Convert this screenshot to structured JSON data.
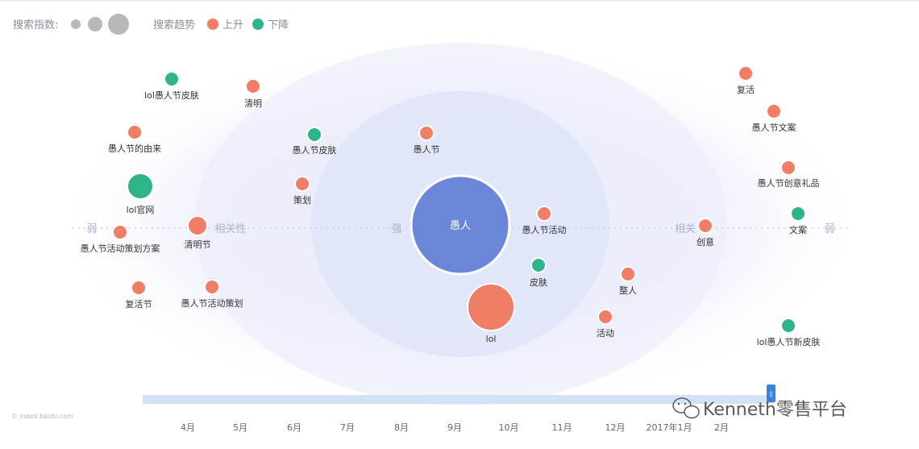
{
  "legend": {
    "size_label": "搜索指数:",
    "trend_label": "搜索趋势",
    "up_label": "上升",
    "down_label": "下降"
  },
  "colors": {
    "up": "#f07d65",
    "down": "#2fb38a",
    "center": "#6b86d8",
    "size_legend": "#b8b8b8",
    "timeline": "#cfe0f8"
  },
  "axis_words": {
    "weak": "弱",
    "related": "相关性",
    "strong": "强",
    "related_short": "相关"
  },
  "chart_data": {
    "type": "bubble",
    "center": {
      "label": "愚人"
    },
    "points": [
      {
        "label": "lol愚人节皮肤",
        "trend": "down",
        "size": 1
      },
      {
        "label": "清明",
        "trend": "up",
        "size": 1
      },
      {
        "label": "愚人节的由来",
        "trend": "up",
        "size": 1
      },
      {
        "label": "愚人节皮肤",
        "trend": "down",
        "size": 1
      },
      {
        "label": "愚人节",
        "trend": "up",
        "size": 1
      },
      {
        "label": "lol官网",
        "trend": "down",
        "size": 2
      },
      {
        "label": "策划",
        "trend": "up",
        "size": 1
      },
      {
        "label": "清明节",
        "trend": "up",
        "size": 1.5
      },
      {
        "label": "愚人节活动策划方案",
        "trend": "up",
        "size": 1
      },
      {
        "label": "愚人节活动",
        "trend": "up",
        "size": 1
      },
      {
        "label": "皮肤",
        "trend": "down",
        "size": 1
      },
      {
        "label": "复活节",
        "trend": "up",
        "size": 1
      },
      {
        "label": "愚人节活动策划",
        "trend": "up",
        "size": 1
      },
      {
        "label": "lol",
        "trend": "up",
        "size": 3
      },
      {
        "label": "整人",
        "trend": "up",
        "size": 1
      },
      {
        "label": "活动",
        "trend": "up",
        "size": 1
      },
      {
        "label": "复活",
        "trend": "up",
        "size": 1
      },
      {
        "label": "愚人节文案",
        "trend": "up",
        "size": 1
      },
      {
        "label": "愚人节创意礼品",
        "trend": "up",
        "size": 1
      },
      {
        "label": "创意",
        "trend": "up",
        "size": 1
      },
      {
        "label": "文案",
        "trend": "down",
        "size": 1
      },
      {
        "label": "lol愚人节新皮肤",
        "trend": "down",
        "size": 1
      }
    ],
    "timeline": {
      "ticks": [
        "4月",
        "5月",
        "6月",
        "7月",
        "8月",
        "9月",
        "10月",
        "11月",
        "12月",
        "2017年1月",
        "2月"
      ],
      "handle_label": "||"
    }
  },
  "footer": {
    "source": "© index.baidu.com",
    "brand": "Kenneth零售平台"
  }
}
